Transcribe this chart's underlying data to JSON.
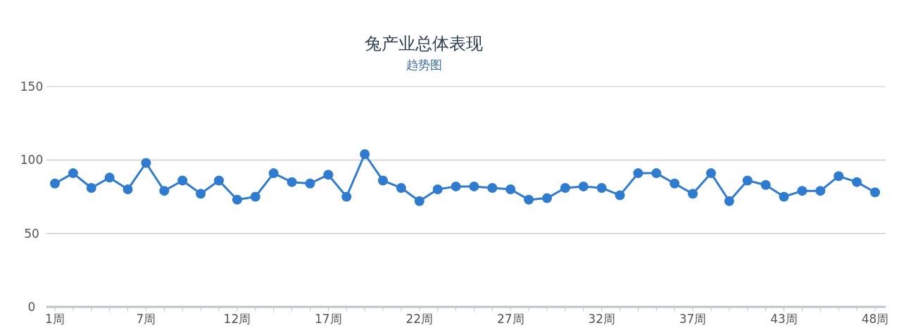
{
  "chart_data": {
    "type": "line",
    "title": "兔产业总体表现",
    "subtitle": "趋势图",
    "categories": [
      "1周",
      null,
      null,
      null,
      null,
      "7周",
      null,
      null,
      null,
      null,
      "12周",
      null,
      null,
      null,
      null,
      "17周",
      null,
      null,
      null,
      null,
      "22周",
      null,
      null,
      null,
      null,
      "27周",
      null,
      null,
      null,
      null,
      "32周",
      null,
      null,
      null,
      null,
      "37周",
      null,
      null,
      null,
      null,
      "43周",
      null,
      null,
      null,
      null,
      "48周"
    ],
    "series": [
      {
        "color": "#2f7bd0",
        "values": [
          84,
          91,
          81,
          88,
          80,
          98,
          79,
          86,
          77,
          86,
          73,
          75,
          91,
          85,
          84,
          90,
          75,
          104,
          86,
          81,
          72,
          80,
          82,
          82,
          81,
          80,
          73,
          74,
          81,
          82,
          81,
          76,
          91,
          91,
          84,
          77,
          91,
          72,
          86,
          83,
          75,
          79,
          79,
          89,
          85,
          78
        ]
      }
    ],
    "ylim": [
      0,
      150
    ],
    "yticks": [
      0,
      50,
      100,
      150
    ],
    "grid": "y",
    "marker": "circle",
    "line_style": "solid"
  }
}
